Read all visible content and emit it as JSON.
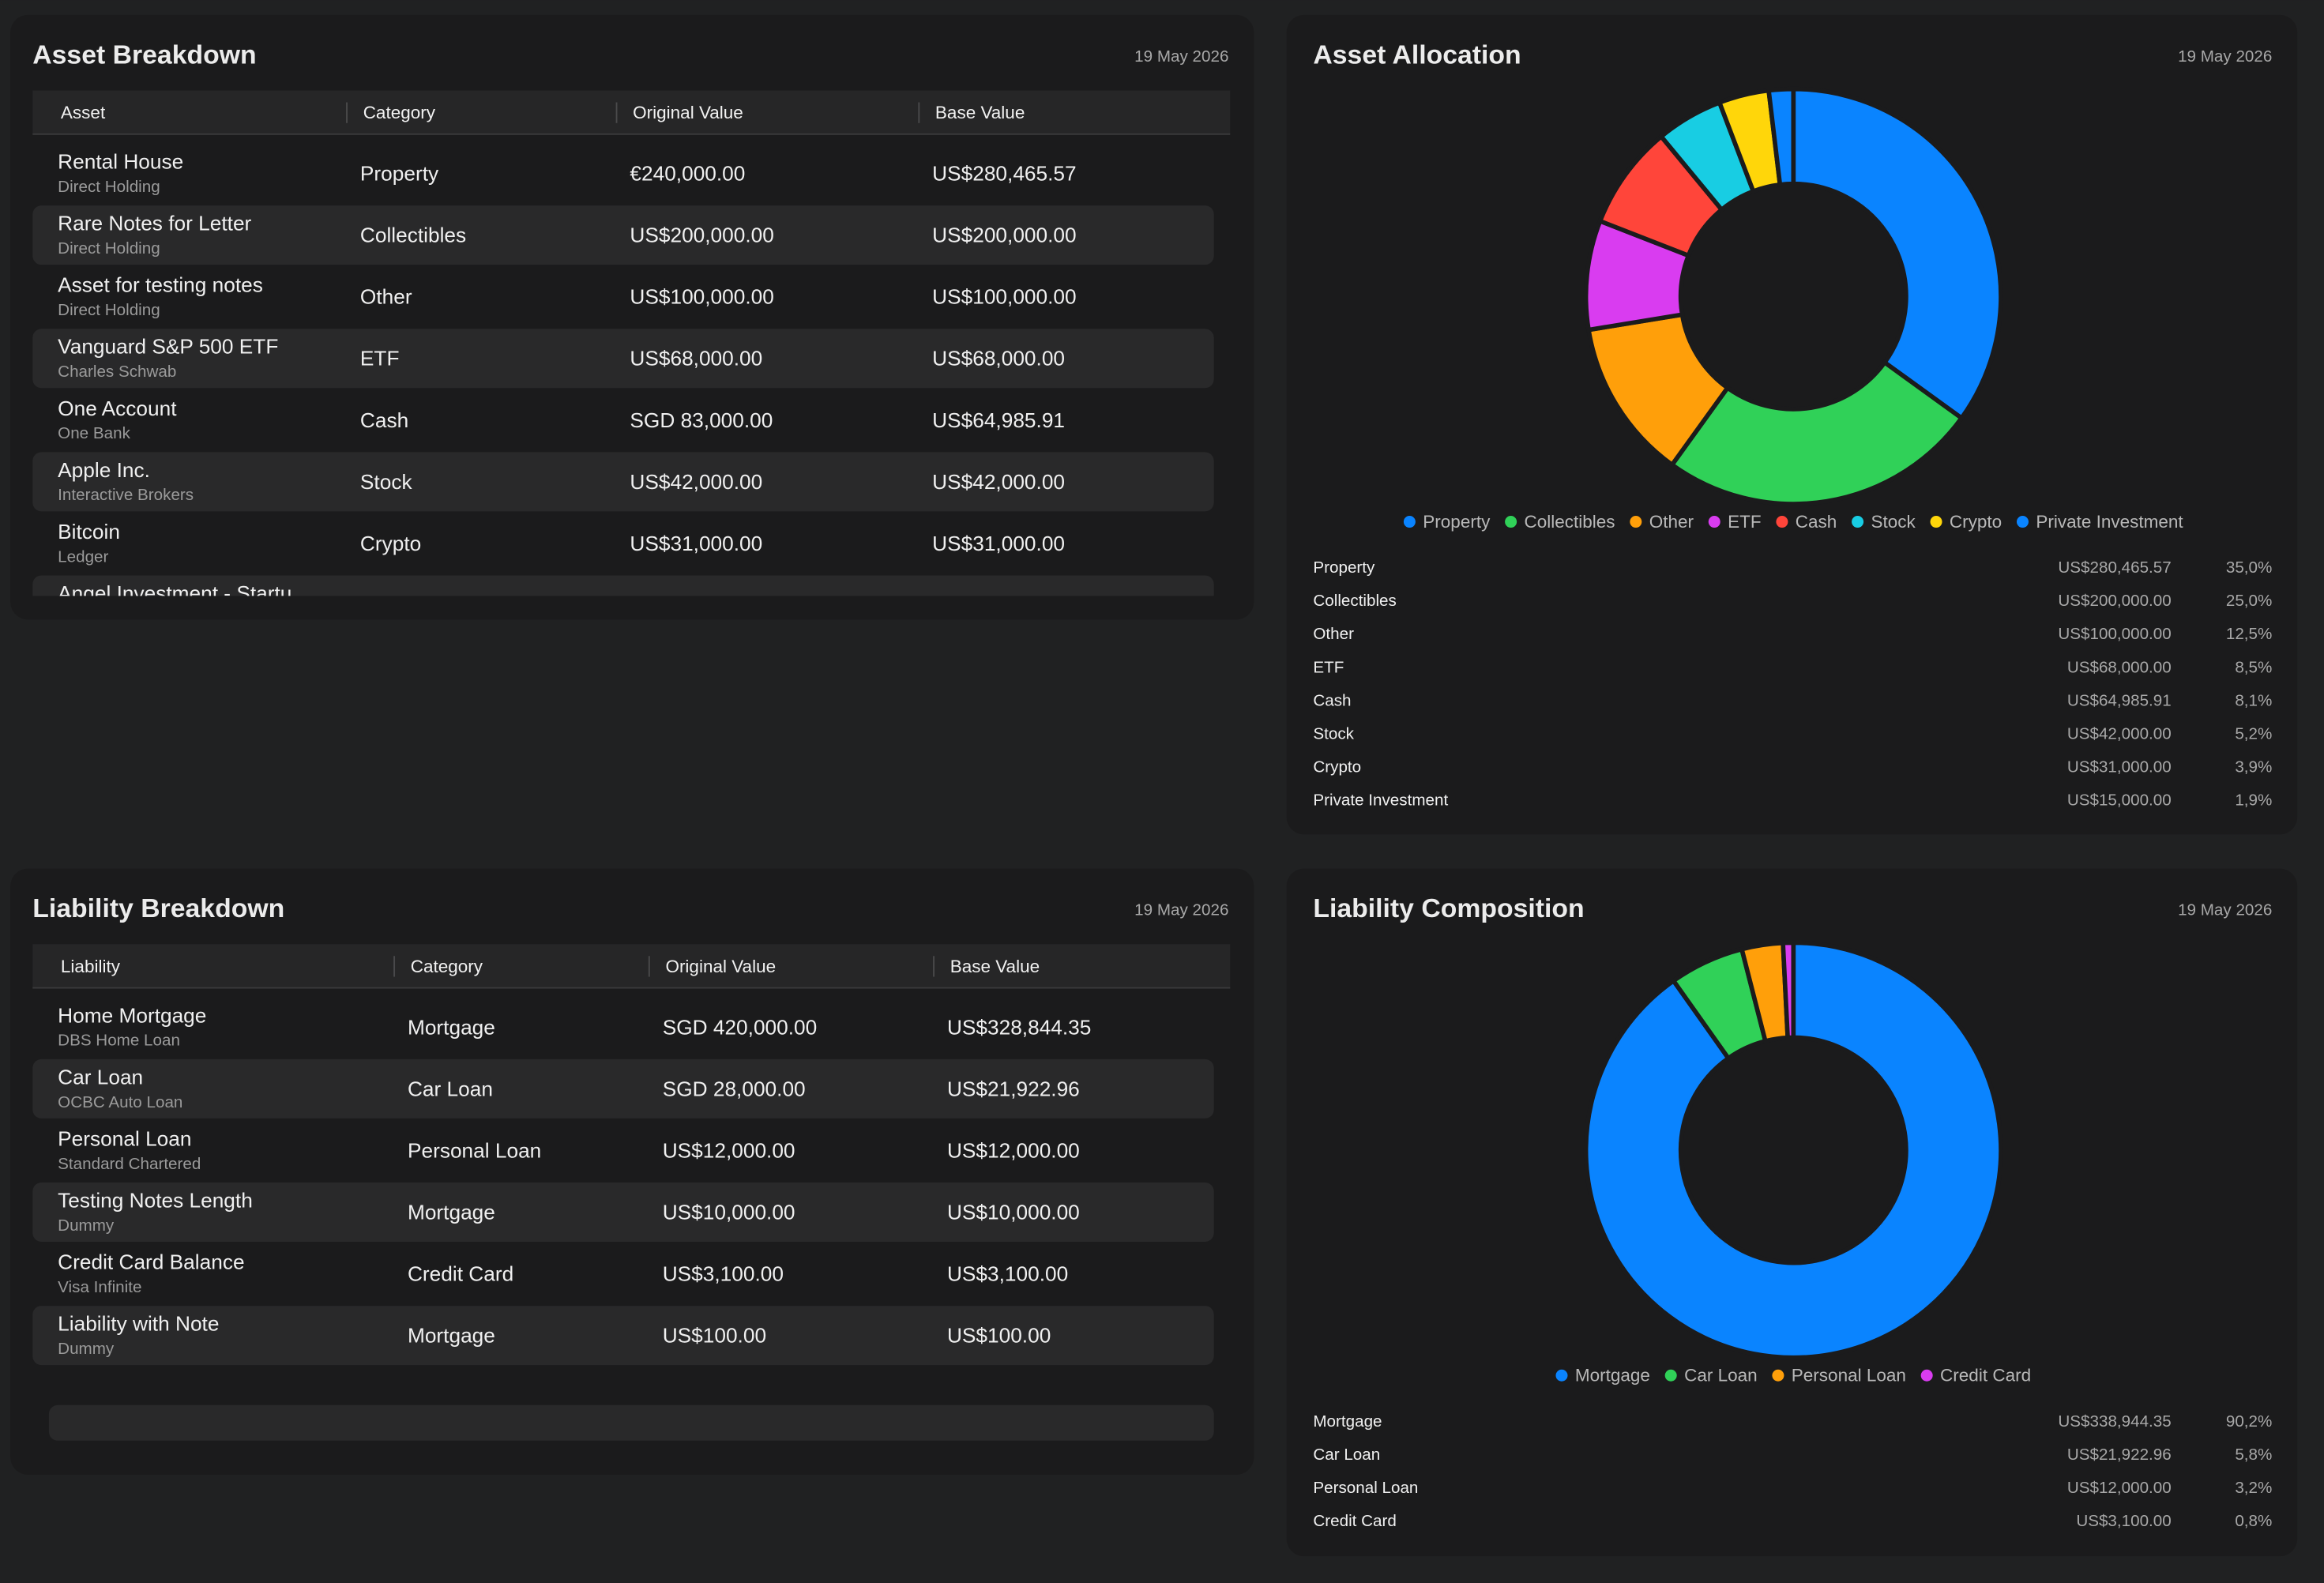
{
  "asset_table": {
    "title": "Asset Breakdown",
    "date": "19 May 2026",
    "columns": [
      "Asset",
      "Category",
      "Original Value",
      "Base Value"
    ],
    "rows": [
      [
        "Rental House",
        "Direct Holding",
        "Property",
        "€240,000.00",
        "US$280,465.57"
      ],
      [
        "Rare Notes for Letter",
        "Direct Holding",
        "Collectibles",
        "US$200,000.00",
        "US$200,000.00"
      ],
      [
        "Asset for testing notes",
        "Direct Holding",
        "Other",
        "US$100,000.00",
        "US$100,000.00"
      ],
      [
        "Vanguard S&P 500 ETF",
        "Charles Schwab",
        "ETF",
        "US$68,000.00",
        "US$68,000.00"
      ],
      [
        "One Account",
        "One Bank",
        "Cash",
        "SGD 83,000.00",
        "US$64,985.91"
      ],
      [
        "Apple Inc.",
        "Interactive Brokers",
        "Stock",
        "US$42,000.00",
        "US$42,000.00"
      ],
      [
        "Bitcoin",
        "Ledger",
        "Crypto",
        "US$31,000.00",
        "US$31,000.00"
      ]
    ],
    "partial_row": "Angel Investment - Startu"
  },
  "liability_table": {
    "title": "Liability Breakdown",
    "date": "19 May 2026",
    "columns": [
      "Liability",
      "Category",
      "Original Value",
      "Base Value"
    ],
    "rows": [
      [
        "Home Mortgage",
        "DBS Home Loan",
        "Mortgage",
        "SGD 420,000.00",
        "US$328,844.35"
      ],
      [
        "Car Loan",
        "OCBC Auto Loan",
        "Car Loan",
        "SGD 28,000.00",
        "US$21,922.96"
      ],
      [
        "Personal Loan",
        "Standard Chartered",
        "Personal Loan",
        "US$12,000.00",
        "US$12,000.00"
      ],
      [
        "Testing Notes Length",
        "Dummy",
        "Mortgage",
        "US$10,000.00",
        "US$10,000.00"
      ],
      [
        "Credit Card Balance",
        "Visa Infinite",
        "Credit Card",
        "US$3,100.00",
        "US$3,100.00"
      ],
      [
        "Liability with Note",
        "Dummy",
        "Mortgage",
        "US$100.00",
        "US$100.00"
      ]
    ]
  },
  "chart_data": [
    {
      "type": "pie",
      "title": "Asset Allocation",
      "date": "19 May 2026",
      "categories": [
        "Property",
        "Collectibles",
        "Other",
        "ETF",
        "Cash",
        "Stock",
        "Crypto",
        "Private Investment"
      ],
      "colors": [
        "#0a84ff",
        "#30d158",
        "#ff9f0a",
        "#d93cf0",
        "#ff453a",
        "#18cde3",
        "#ffd60a",
        "#0a84ff"
      ],
      "values": [
        35.0,
        25.0,
        12.5,
        8.5,
        8.1,
        5.2,
        3.9,
        1.9
      ],
      "value_labels": [
        "35,0%",
        "25,0%",
        "12,5%",
        "8,5%",
        "8,1%",
        "5,2%",
        "3,9%",
        "1,9%"
      ],
      "amounts": [
        "US$280,465.57",
        "US$200,000.00",
        "US$100,000.00",
        "US$68,000.00",
        "US$64,985.91",
        "US$42,000.00",
        "US$31,000.00",
        "US$15,000.00"
      ]
    },
    {
      "type": "pie",
      "title": "Liability Composition",
      "date": "19 May 2026",
      "categories": [
        "Mortgage",
        "Car Loan",
        "Personal Loan",
        "Credit Card"
      ],
      "colors": [
        "#0a84ff",
        "#30d158",
        "#ff9f0a",
        "#d93cf0"
      ],
      "values": [
        90.2,
        5.8,
        3.2,
        0.8
      ],
      "value_labels": [
        "90,2%",
        "5,8%",
        "3,2%",
        "0,8%"
      ],
      "amounts": [
        "US$338,944.35",
        "US$21,922.96",
        "US$12,000.00",
        "US$3,100.00"
      ]
    }
  ]
}
